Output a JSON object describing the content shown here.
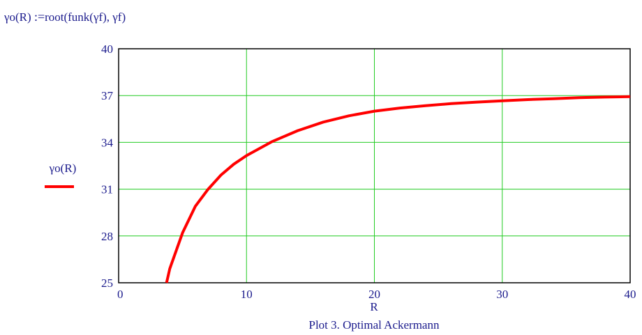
{
  "formula": {
    "lhs": "γo(R)",
    "operator": ":=",
    "rhs": "root(funk(γf), γf)"
  },
  "chart_data": {
    "type": "line",
    "title": "Plot 3. Optimal Ackermann",
    "xlabel": "R",
    "ylabel": "",
    "xlim": [
      0,
      40
    ],
    "ylim": [
      25,
      40
    ],
    "x_ticks": [
      "0",
      "10",
      "20",
      "30",
      "40"
    ],
    "y_ticks": [
      "25",
      "28",
      "31",
      "34",
      "37",
      "40"
    ],
    "grid": true,
    "grid_color": "#22cc22",
    "legend": {
      "placement": "left",
      "entries": [
        "γo(R)"
      ]
    },
    "series": [
      {
        "name": "γo(R)",
        "color": "#ff0000",
        "x": [
          3.75,
          4,
          5,
          6,
          7,
          8,
          9,
          10,
          12,
          14,
          16,
          18,
          20,
          22,
          24,
          26,
          28,
          30,
          32,
          34,
          36,
          38,
          40
        ],
        "y": [
          25.0,
          25.9,
          28.2,
          29.9,
          31.0,
          31.9,
          32.6,
          33.15,
          34.05,
          34.75,
          35.3,
          35.7,
          36.0,
          36.2,
          36.35,
          36.48,
          36.58,
          36.66,
          36.74,
          36.8,
          36.86,
          36.9,
          36.93
        ]
      }
    ]
  }
}
